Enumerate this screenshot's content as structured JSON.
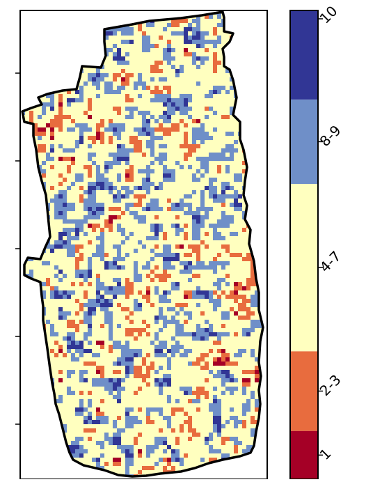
{
  "colors": {
    "class_1": "#a50026",
    "class_2_3": "#e86c3e",
    "class_4_7": "#ffffbf",
    "class_8_9": "#6f8fc8",
    "class_10": "#313695",
    "outline": "#000000",
    "frame": "#000000",
    "background": "#ffffff"
  },
  "legend": {
    "type": "discrete-colorbar",
    "orientation": "vertical",
    "placement": "right",
    "classes": [
      {
        "label": "1",
        "color": "#a50026",
        "share": 0.103
      },
      {
        "label": "2-3",
        "color": "#e86c3e",
        "share": 0.17
      },
      {
        "label": "4-7",
        "color": "#ffffbf",
        "share": 0.357
      },
      {
        "label": "8-9",
        "color": "#6f8fc8",
        "share": 0.18
      },
      {
        "label": "10",
        "color": "#313695",
        "share": 0.19
      }
    ],
    "label_rotation_deg": -45
  },
  "map": {
    "kind": "classified raster (choropleth grid)",
    "y_ticks_count": 5,
    "x_ticks_count": 0,
    "has_frame": true,
    "class_mix": {
      "1": 0.12,
      "2-3": 0.16,
      "4-7": 0.34,
      "8-9": 0.18,
      "10": 0.2
    }
  }
}
